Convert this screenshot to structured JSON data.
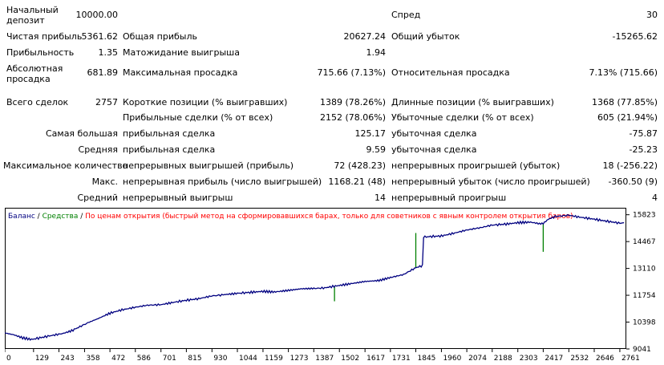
{
  "report": {
    "initial_deposit": {
      "label": "Начальный депозит",
      "value": "10000.00"
    },
    "spread": {
      "label": "Спред",
      "value": "30"
    },
    "net_profit": {
      "label": "Чистая прибыль",
      "value": "5361.62"
    },
    "gross_profit": {
      "label": "Общая прибыль",
      "value": "20627.24"
    },
    "gross_loss": {
      "label": "Общий убыток",
      "value": "-15265.62"
    },
    "profit_factor": {
      "label": "Прибыльность",
      "value": "1.35"
    },
    "expected_payoff": {
      "label": "Матожидание выигрыша",
      "value": "1.94"
    },
    "absolute_drawdown": {
      "label": "Абсолютная просадка",
      "value": "681.89"
    },
    "maximal_drawdown": {
      "label": "Максимальная просадка",
      "value": "715.66 (7.13%)"
    },
    "relative_drawdown": {
      "label": "Относительная просадка",
      "value": "7.13% (715.66)"
    },
    "total_trades": {
      "label": "Всего сделок",
      "value": "2757"
    },
    "short_positions": {
      "label": "Короткие позиции (% выигравших)",
      "value": "1389 (78.26%)"
    },
    "long_positions": {
      "label": "Длинные позиции (% выигравших)",
      "value": "1368 (77.85%)"
    },
    "profit_trades": {
      "label": "Прибыльные сделки (% от всех)",
      "value": "2152 (78.06%)"
    },
    "loss_trades": {
      "label": "Убыточные сделки (% от всех)",
      "value": "605 (21.94%)"
    },
    "largest": {
      "label": "Самая большая",
      "profit_label": "прибыльная сделка",
      "profit_value": "125.17",
      "loss_label": "убыточная сделка",
      "loss_value": "-75.87"
    },
    "average": {
      "label": "Средняя",
      "profit_label": "прибыльная сделка",
      "profit_value": "9.59",
      "loss_label": "убыточная сделка",
      "loss_value": "-25.23"
    },
    "max_consecutive": {
      "label": "Максимальное количество",
      "wins_label": "непрерывных выигрышей (прибыль)",
      "wins_value": "72 (428.23)",
      "losses_label": "непрерывных проигрышей (убыток)",
      "losses_value": "18 (-256.22)"
    },
    "max_consecutive_amount": {
      "label": "Макс.",
      "wins_label": "непрерывная прибыль (число выигрышей)",
      "wins_value": "1168.21 (48)",
      "losses_label": "непрерывный убыток (число проигрышей)",
      "losses_value": "-360.50 (9)"
    },
    "avg_consecutive": {
      "label": "Средний",
      "wins_label": "непрерывный выигрыш",
      "wins_value": "14",
      "losses_label": "непрерывный проигрыш",
      "losses_value": "4"
    }
  },
  "legend": {
    "balance": "Баланс",
    "sep1": " / ",
    "equity": "Средства",
    "sep2": " / ",
    "model": "По ценам открытия (быстрый метод на сформировавшихся барах, только для советников с явным контролем открытия баров)"
  },
  "colors": {
    "balance": "#000080",
    "equity": "#008000",
    "model": "#ff0000",
    "grid": "#c0c0c0"
  },
  "chart_data": {
    "type": "line",
    "series": [
      {
        "name": "Баланс",
        "x": [
          0,
          40,
          80,
          120,
          200,
          260,
          300,
          343,
          380,
          420,
          472,
          520,
          586,
          640,
          701,
          760,
          815,
          870,
          930,
          980,
          1044,
          1100,
          1159,
          1210,
          1273,
          1330,
          1387,
          1430,
          1502,
          1560,
          1617,
          1680,
          1731,
          1790,
          1845,
          1875,
          1880,
          1960,
          2020,
          2074,
          2140,
          2188,
          2250,
          2303,
          2360,
          2400,
          2417,
          2440,
          2470,
          2532,
          2580,
          2646,
          2700,
          2761,
          2780
        ],
        "y": [
          9850,
          9760,
          9600,
          9520,
          9700,
          9820,
          9960,
          10200,
          10400,
          10580,
          10850,
          11000,
          11150,
          11250,
          11280,
          11400,
          11500,
          11580,
          11720,
          11780,
          11850,
          11900,
          11950,
          11920,
          12000,
          12080,
          12100,
          12120,
          12250,
          12350,
          12450,
          12500,
          12650,
          12800,
          13150,
          13250,
          14700,
          14750,
          14900,
          15050,
          15180,
          15300,
          15350,
          15420,
          15450,
          15370,
          15380,
          15600,
          15730,
          15800,
          15700,
          15600,
          15500,
          15400,
          15420
        ]
      },
      {
        "name": "Средства",
        "spikes": [
          {
            "x": 1480,
            "y": 11450
          },
          {
            "x": 1845,
            "y": 14900
          },
          {
            "x": 2417,
            "y": 13950
          }
        ]
      }
    ],
    "x_ticks": [
      0,
      129,
      243,
      358,
      472,
      586,
      701,
      815,
      930,
      1044,
      1159,
      1273,
      1387,
      1502,
      1617,
      1731,
      1845,
      1960,
      2074,
      2188,
      2303,
      2417,
      2532,
      2646,
      2761
    ],
    "y_ticks": [
      9041,
      10398,
      11754,
      13110,
      14467,
      15823
    ],
    "xlim": [
      0,
      2790
    ],
    "ylim": [
      9041,
      16175
    ],
    "grid": false
  }
}
